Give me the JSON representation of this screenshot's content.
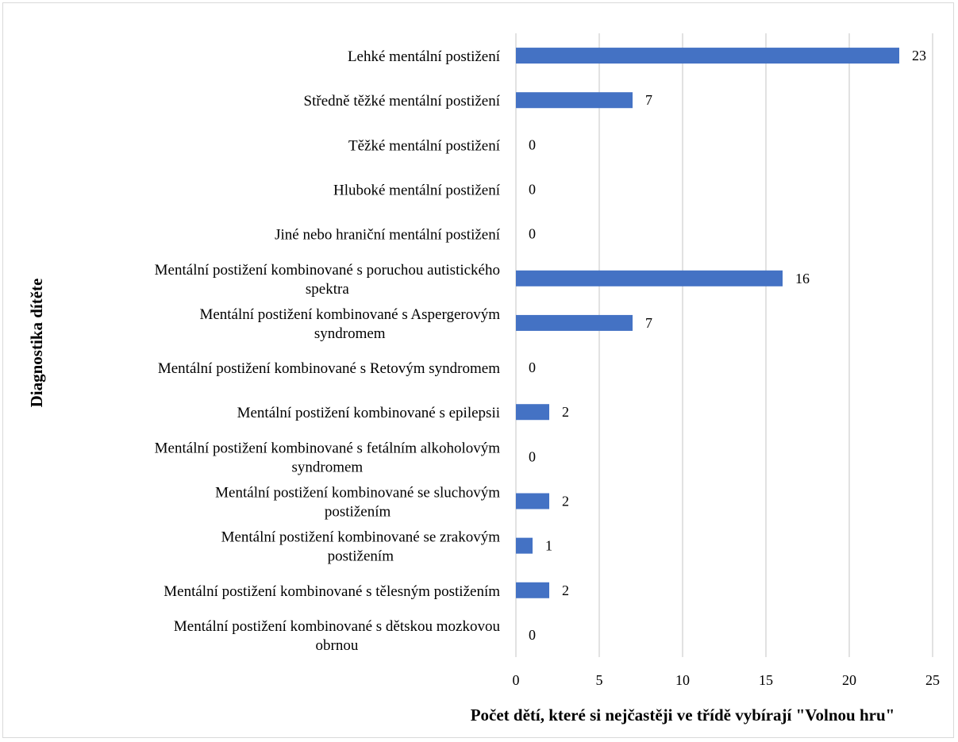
{
  "chart_data": {
    "type": "bar",
    "orientation": "horizontal",
    "title": "",
    "xlabel": "Počet dětí, které si nejčastěji ve třídě vybírají  \"Volnou hru\"",
    "ylabel": "Diagnostika dítěte",
    "xlim": [
      0,
      25
    ],
    "xticks": [
      0,
      5,
      10,
      15,
      20,
      25
    ],
    "grid": "vertical",
    "legend": "none",
    "bar_color": "#4472c4",
    "categories": [
      [
        "Lehké mentální postižení"
      ],
      [
        "Středně těžké mentální postižení"
      ],
      [
        "Těžké mentální postižení"
      ],
      [
        "Hluboké mentální postižení"
      ],
      [
        "Jiné nebo hraniční mentální postižení"
      ],
      [
        "Mentální postižení kombinované s poruchou autistického",
        "spektra"
      ],
      [
        "Mentální postižení kombinované s Aspergerovým",
        "syndromem"
      ],
      [
        "Mentální postižení kombinované s Retovým syndromem"
      ],
      [
        "Mentální postižení kombinované s epilepsii"
      ],
      [
        "Mentální postižení kombinované s fetálním alkoholovým",
        "syndromem"
      ],
      [
        "Mentální postižení kombinované se sluchovým",
        "postižením"
      ],
      [
        "Mentální postižení kombinované se zrakovým",
        "postižením"
      ],
      [
        "Mentální postižení kombinované s tělesným postižením"
      ],
      [
        "Mentální postižení kombinované s dětskou mozkovou",
        "obrnou"
      ]
    ],
    "values": [
      23,
      7,
      0,
      0,
      0,
      16,
      7,
      0,
      2,
      0,
      2,
      1,
      2,
      0
    ]
  }
}
